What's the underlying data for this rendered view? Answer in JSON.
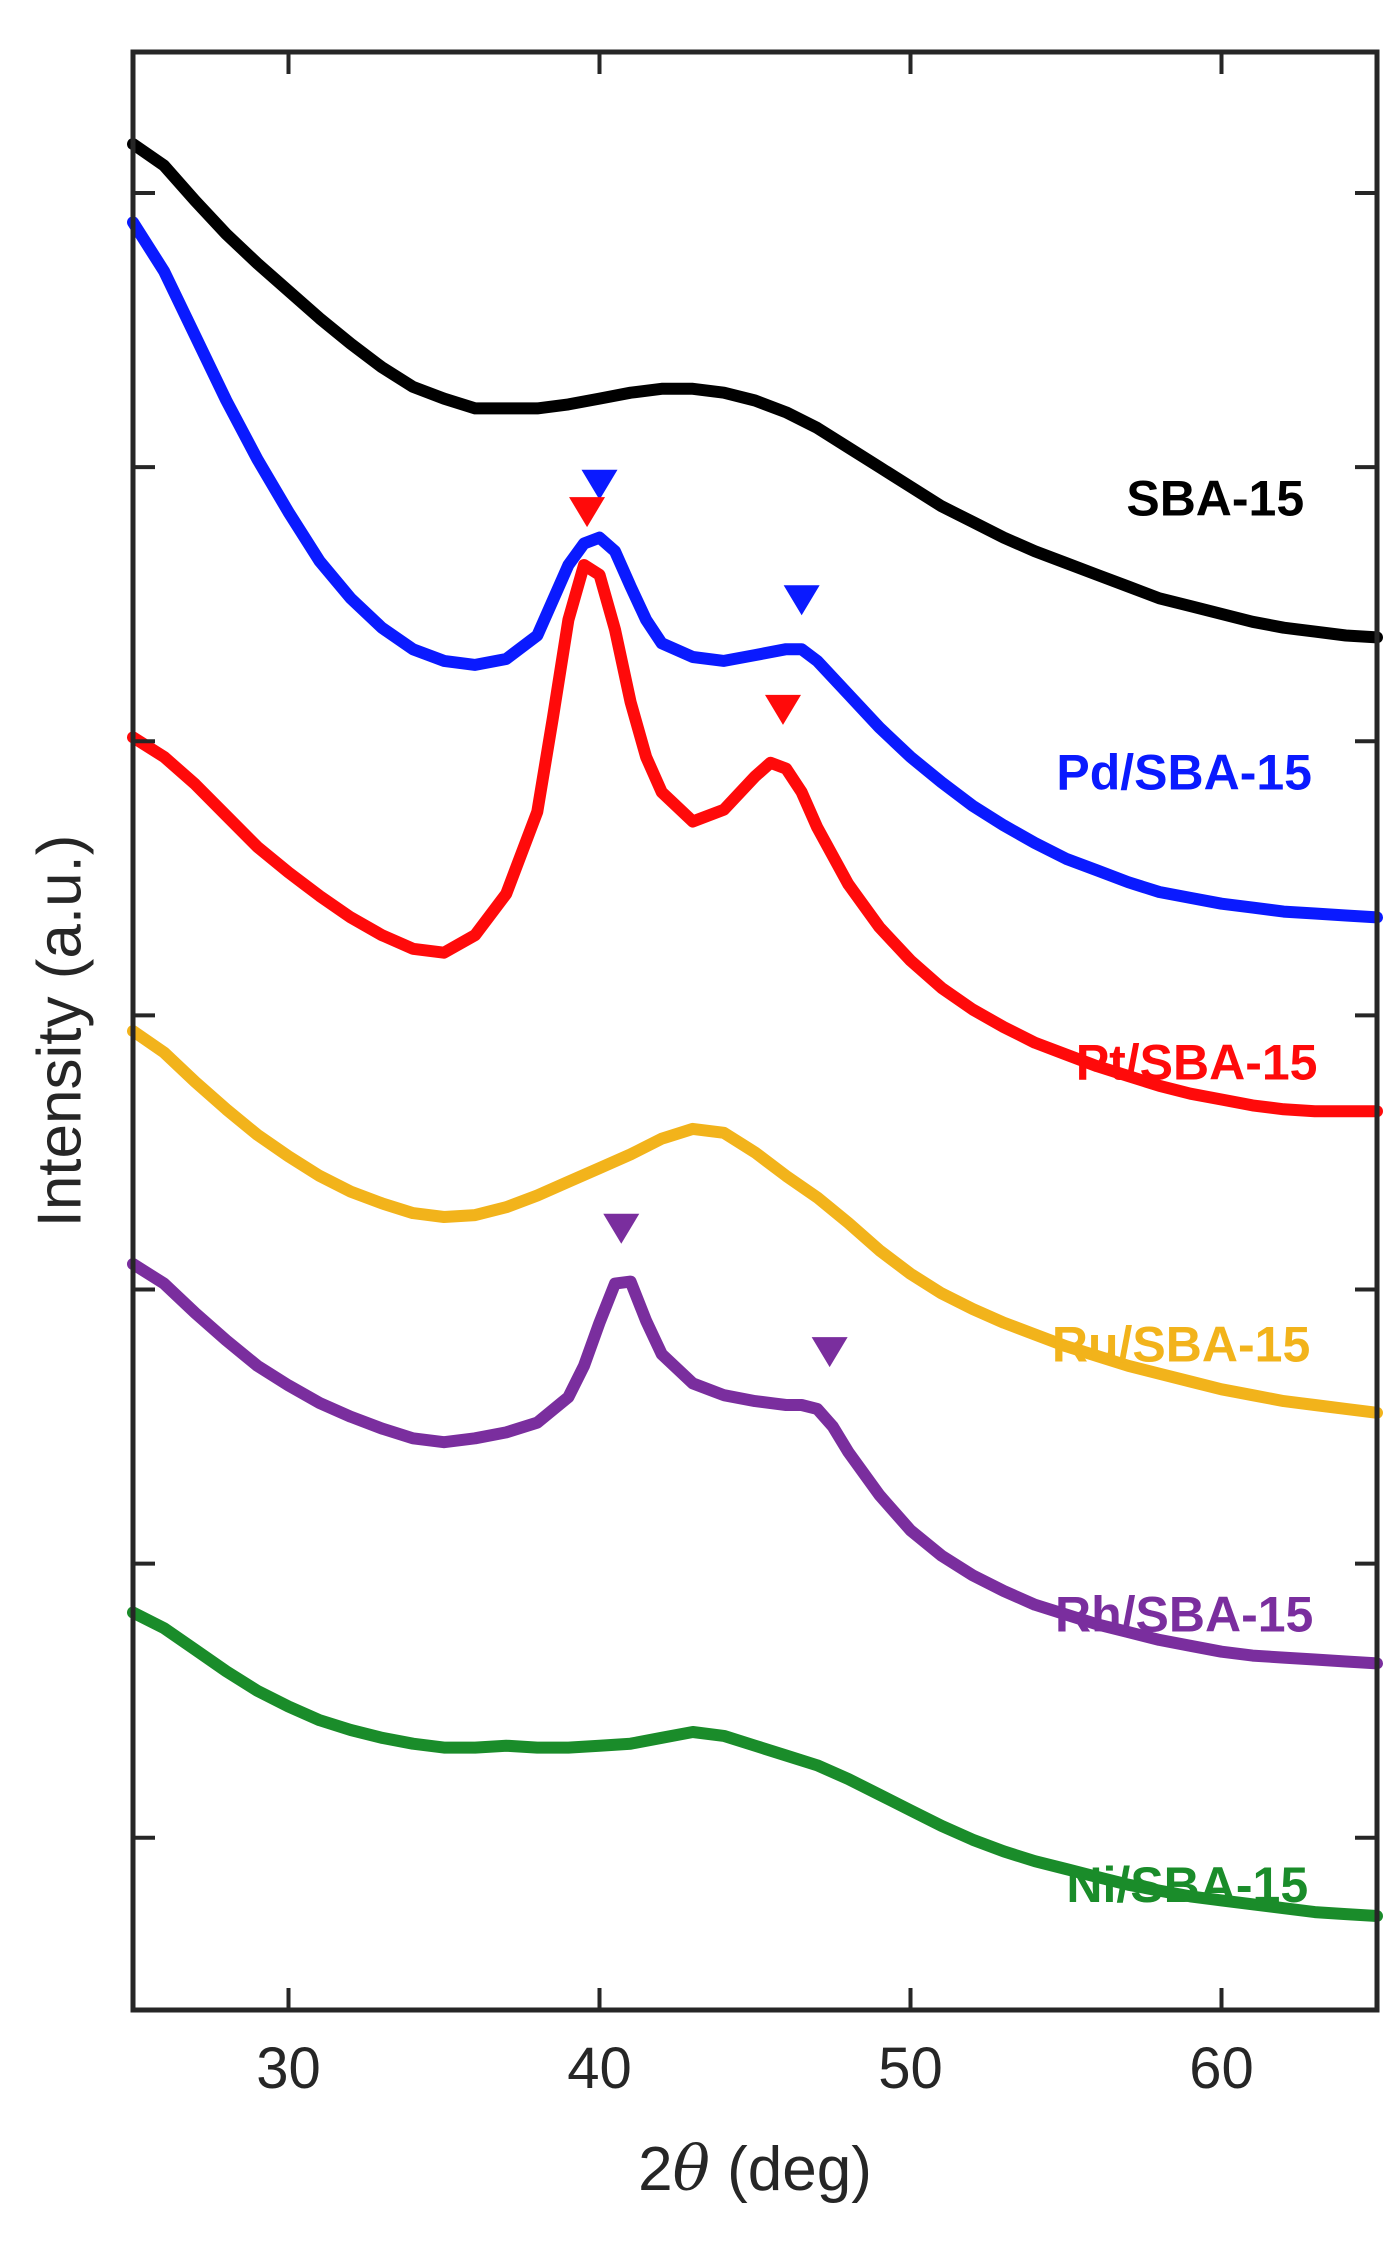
{
  "chart_data": {
    "type": "line",
    "title": "",
    "xlabel_prefix": "2",
    "xlabel_symbol": "θ",
    "xlabel_suffix": " (deg)",
    "ylabel": "Intensity (a.u.)",
    "xlim": [
      25,
      65
    ],
    "ylim": [
      0,
      1
    ],
    "xticks": [
      30,
      40,
      50,
      60
    ],
    "yticks": [
      0.088,
      0.228,
      0.368,
      0.508,
      0.648,
      0.788,
      0.928
    ],
    "grid": false,
    "series": [
      {
        "name": "SBA-15",
        "color": "#000000",
        "x": [
          25,
          26,
          27,
          28,
          29,
          30,
          31,
          32,
          33,
          34,
          35,
          36,
          37,
          38,
          39,
          40,
          41,
          42,
          43,
          44,
          45,
          46,
          47,
          48,
          49,
          50,
          51,
          52,
          53,
          54,
          55,
          56,
          57,
          58,
          59,
          60,
          61,
          62,
          63,
          64,
          65
        ],
        "y": [
          0.953,
          0.942,
          0.924,
          0.907,
          0.892,
          0.878,
          0.864,
          0.851,
          0.839,
          0.829,
          0.823,
          0.818,
          0.818,
          0.818,
          0.82,
          0.823,
          0.826,
          0.828,
          0.828,
          0.826,
          0.822,
          0.816,
          0.808,
          0.798,
          0.788,
          0.778,
          0.768,
          0.76,
          0.752,
          0.745,
          0.739,
          0.733,
          0.727,
          0.721,
          0.717,
          0.713,
          0.709,
          0.706,
          0.704,
          0.702,
          0.701
        ]
      },
      {
        "name": "Pd/SBA-15",
        "color": "#0a1aff",
        "x": [
          25,
          26,
          27,
          28,
          29,
          30,
          31,
          32,
          33,
          34,
          35,
          36,
          37,
          38,
          38.5,
          39,
          39.5,
          40,
          40.5,
          41,
          41.5,
          42,
          43,
          44,
          45,
          46,
          46.5,
          47,
          48,
          49,
          50,
          51,
          52,
          53,
          54,
          55,
          56,
          57,
          58,
          59,
          60,
          61,
          62,
          63,
          64,
          65
        ],
        "y": [
          0.913,
          0.888,
          0.855,
          0.822,
          0.792,
          0.765,
          0.74,
          0.721,
          0.706,
          0.695,
          0.689,
          0.687,
          0.69,
          0.702,
          0.72,
          0.738,
          0.749,
          0.752,
          0.745,
          0.727,
          0.71,
          0.698,
          0.691,
          0.689,
          0.692,
          0.695,
          0.695,
          0.689,
          0.672,
          0.655,
          0.64,
          0.627,
          0.615,
          0.605,
          0.596,
          0.588,
          0.582,
          0.576,
          0.571,
          0.568,
          0.565,
          0.563,
          0.561,
          0.56,
          0.559,
          0.558
        ]
      },
      {
        "name": "Pt/SBA-15",
        "color": "#ff0a0a",
        "x": [
          25,
          26,
          27,
          28,
          29,
          30,
          31,
          32,
          33,
          34,
          35,
          36,
          37,
          38,
          38.5,
          39,
          39.5,
          40,
          40.5,
          41,
          41.5,
          42,
          43,
          44,
          45,
          45.5,
          46,
          46.5,
          47,
          48,
          49,
          50,
          51,
          52,
          53,
          54,
          55,
          56,
          57,
          58,
          59,
          60,
          61,
          62,
          63,
          64,
          65
        ],
        "y": [
          0.65,
          0.64,
          0.626,
          0.61,
          0.594,
          0.581,
          0.569,
          0.558,
          0.549,
          0.542,
          0.54,
          0.549,
          0.57,
          0.612,
          0.66,
          0.71,
          0.738,
          0.733,
          0.705,
          0.668,
          0.64,
          0.622,
          0.607,
          0.613,
          0.63,
          0.637,
          0.634,
          0.622,
          0.604,
          0.575,
          0.553,
          0.536,
          0.522,
          0.511,
          0.502,
          0.494,
          0.488,
          0.482,
          0.477,
          0.472,
          0.468,
          0.465,
          0.462,
          0.46,
          0.459,
          0.459,
          0.459
        ]
      },
      {
        "name": "Ru/SBA-15",
        "color": "#f2b31b",
        "x": [
          25,
          26,
          27,
          28,
          29,
          30,
          31,
          32,
          33,
          34,
          35,
          36,
          37,
          38,
          39,
          40,
          41,
          42,
          43,
          44,
          45,
          46,
          47,
          48,
          49,
          50,
          51,
          52,
          53,
          54,
          55,
          56,
          57,
          58,
          59,
          60,
          61,
          62,
          63,
          64,
          65
        ],
        "y": [
          0.5,
          0.489,
          0.474,
          0.46,
          0.447,
          0.436,
          0.426,
          0.418,
          0.412,
          0.407,
          0.405,
          0.406,
          0.41,
          0.416,
          0.423,
          0.43,
          0.437,
          0.445,
          0.45,
          0.448,
          0.438,
          0.426,
          0.415,
          0.402,
          0.388,
          0.376,
          0.366,
          0.358,
          0.351,
          0.345,
          0.339,
          0.334,
          0.329,
          0.325,
          0.321,
          0.317,
          0.314,
          0.311,
          0.309,
          0.307,
          0.305
        ]
      },
      {
        "name": "Rh/SBA-15",
        "color": "#7a2e9e",
        "x": [
          25,
          26,
          27,
          28,
          29,
          30,
          31,
          32,
          33,
          34,
          35,
          36,
          37,
          38,
          39,
          39.5,
          40,
          40.5,
          41,
          41.5,
          42,
          43,
          44,
          45,
          46,
          46.5,
          47,
          47.5,
          48,
          49,
          50,
          51,
          52,
          53,
          54,
          55,
          56,
          57,
          58,
          59,
          60,
          61,
          62,
          63,
          64,
          65
        ],
        "y": [
          0.381,
          0.371,
          0.356,
          0.342,
          0.329,
          0.319,
          0.31,
          0.303,
          0.297,
          0.292,
          0.29,
          0.292,
          0.295,
          0.3,
          0.313,
          0.329,
          0.351,
          0.371,
          0.372,
          0.352,
          0.335,
          0.32,
          0.314,
          0.311,
          0.309,
          0.309,
          0.307,
          0.298,
          0.285,
          0.263,
          0.245,
          0.232,
          0.222,
          0.214,
          0.207,
          0.202,
          0.197,
          0.193,
          0.189,
          0.186,
          0.183,
          0.181,
          0.18,
          0.179,
          0.178,
          0.177
        ]
      },
      {
        "name": "Ni/SBA-15",
        "color": "#1a8c2a",
        "x": [
          25,
          26,
          27,
          28,
          29,
          30,
          31,
          32,
          33,
          34,
          35,
          36,
          37,
          38,
          39,
          40,
          41,
          42,
          43,
          44,
          45,
          46,
          47,
          48,
          49,
          50,
          51,
          52,
          53,
          54,
          55,
          56,
          57,
          58,
          59,
          60,
          61,
          62,
          63,
          64,
          65
        ],
        "y": [
          0.203,
          0.195,
          0.184,
          0.173,
          0.163,
          0.155,
          0.148,
          0.143,
          0.139,
          0.136,
          0.134,
          0.134,
          0.135,
          0.134,
          0.134,
          0.135,
          0.136,
          0.139,
          0.142,
          0.14,
          0.135,
          0.13,
          0.125,
          0.118,
          0.11,
          0.102,
          0.094,
          0.087,
          0.081,
          0.076,
          0.072,
          0.068,
          0.064,
          0.061,
          0.058,
          0.056,
          0.054,
          0.052,
          0.05,
          0.049,
          0.048
        ]
      }
    ],
    "annotations": [
      {
        "name": "SBA-15",
        "text": "SBA-15",
        "x": 59.8,
        "y": 0.77,
        "color": "#000000"
      },
      {
        "name": "Pd/SBA-15",
        "text": "Pd/SBA-15",
        "x": 58.8,
        "y": 0.63,
        "color": "#0a1aff"
      },
      {
        "name": "Pt/SBA-15",
        "text": "Pt/SBA-15",
        "x": 59.2,
        "y": 0.482,
        "color": "#ff0a0a"
      },
      {
        "name": "Ru/SBA-15",
        "text": "Ru/SBA-15",
        "x": 58.7,
        "y": 0.338,
        "color": "#f2b31b"
      },
      {
        "name": "Rh/SBA-15",
        "text": "Rh/SBA-15",
        "x": 58.8,
        "y": 0.2,
        "color": "#7a2e9e"
      },
      {
        "name": "Ni/SBA-15",
        "text": "Ni/SBA-15",
        "x": 58.9,
        "y": 0.062,
        "color": "#1a8c2a"
      }
    ],
    "peak_markers": [
      {
        "x": 40.0,
        "y": 0.779,
        "color": "#0a1aff"
      },
      {
        "x": 46.5,
        "y": 0.72,
        "color": "#0a1aff"
      },
      {
        "x": 39.6,
        "y": 0.765,
        "color": "#ff0a0a"
      },
      {
        "x": 45.9,
        "y": 0.664,
        "color": "#ff0a0a"
      },
      {
        "x": 40.7,
        "y": 0.399,
        "color": "#7a2e9e"
      },
      {
        "x": 47.4,
        "y": 0.336,
        "color": "#7a2e9e"
      }
    ]
  }
}
